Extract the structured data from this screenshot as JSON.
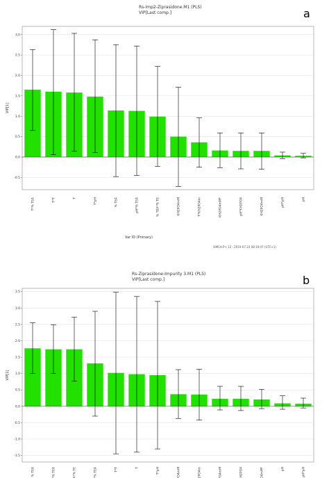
{
  "chart_data": [
    {
      "panel_letter": "a",
      "type": "bar",
      "title": "Rs-Imp2-Ziprasidone.M1 (PLS)",
      "subtitle": "VIP[Last comp.]",
      "ylabel": "VIP[1]",
      "xlabel": "Var ID (Primary)",
      "footer": "SIMCA-P+ 12 - 2010-07-23 08:19:47 (UTC+1)",
      "ylim": [
        -0.8,
        3.2
      ],
      "yticks": [
        "-0.5",
        "0.0",
        "0.5",
        "1.0",
        "1.5",
        "2.0",
        "2.5",
        "3.0"
      ],
      "grid": true,
      "bar_color": "#22e000",
      "categories": [
        "T*% TEA",
        "T*T",
        "T",
        "T*pH",
        "% TEA",
        "pH*% TEA",
        "% TEA*% TE",
        "KH2PO4mM",
        "T*KH2PO4m",
        "KH2PO4mM*",
        "pH*KH2PO4",
        "KH2PO4mM",
        "pH*pH",
        "pH"
      ],
      "values": [
        1.65,
        1.6,
        1.58,
        1.48,
        1.14,
        1.13,
        0.99,
        0.5,
        0.36,
        0.16,
        0.15,
        0.15,
        0.04,
        0.03
      ],
      "error_low": [
        0.65,
        0.06,
        0.14,
        0.11,
        -0.48,
        -0.45,
        -0.23,
        -0.72,
        -0.25,
        -0.26,
        -0.29,
        -0.3,
        -0.04,
        -0.02
      ],
      "error_high": [
        2.63,
        3.12,
        3.03,
        2.87,
        2.75,
        2.72,
        2.22,
        1.71,
        0.96,
        0.59,
        0.59,
        0.59,
        0.12,
        0.09
      ]
    },
    {
      "panel_letter": "b",
      "type": "bar",
      "title": "Rs-Ziprasidone-Impurity 3.M1 (PLS)",
      "subtitle": "VIP[Last comp.]",
      "ylabel": "VIP[1]",
      "xlabel": "",
      "footer": "",
      "ylim": [
        -1.7,
        3.6
      ],
      "yticks": [
        "-1.5",
        "-1.0",
        "-0.5",
        "0.0",
        "0.5",
        "1.0",
        "1.5",
        "2.0",
        "2.5",
        "3.0",
        "3.5"
      ],
      "grid": true,
      "bar_color": "#22e000",
      "categories": [
        "% TEA",
        "pH*% TEA",
        "% TEA*% TE",
        "T*% TEA",
        "T*T",
        "T",
        "T*pH",
        "KH2PO4mM",
        "T*KH2PO4m",
        "KH2PO4mM",
        "pH*KH2PO4",
        "KH2PO4mM*",
        "pH",
        "pH*pH"
      ],
      "values": [
        1.77,
        1.74,
        1.74,
        1.31,
        1.02,
        0.98,
        0.95,
        0.37,
        0.36,
        0.23,
        0.23,
        0.21,
        0.09,
        0.08
      ],
      "error_low": [
        1.0,
        1.0,
        0.77,
        -0.3,
        -1.45,
        -1.4,
        -1.3,
        -0.37,
        -0.42,
        -0.11,
        -0.13,
        -0.07,
        -0.09,
        -0.05
      ],
      "error_high": [
        2.55,
        2.49,
        2.72,
        2.9,
        3.48,
        3.35,
        3.2,
        1.12,
        1.13,
        0.61,
        0.61,
        0.52,
        0.32,
        0.25
      ]
    }
  ]
}
